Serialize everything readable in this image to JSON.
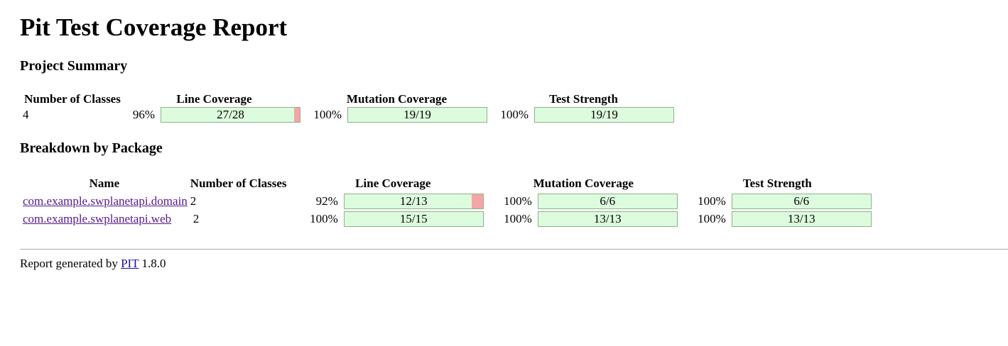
{
  "page_title": "Pit Test Coverage Report",
  "summary": {
    "heading": "Project Summary",
    "headers": {
      "classes": "Number of Classes",
      "line": "Line Coverage",
      "mutation": "Mutation Coverage",
      "strength": "Test Strength"
    },
    "row": {
      "classes": "4",
      "line_pct": "96%",
      "line_label": "27/28",
      "line_ratio": 0.96,
      "mutation_pct": "100%",
      "mutation_label": "19/19",
      "mutation_ratio": 1.0,
      "strength_pct": "100%",
      "strength_label": "19/19",
      "strength_ratio": 1.0
    }
  },
  "breakdown": {
    "heading": "Breakdown by Package",
    "headers": {
      "name": "Name",
      "classes": "Number of Classes",
      "line": "Line Coverage",
      "mutation": "Mutation Coverage",
      "strength": "Test Strength"
    },
    "rows": [
      {
        "name": "com.example.swplanetapi.domain",
        "classes": "2",
        "line_pct": "92%",
        "line_label": "12/13",
        "line_ratio": 0.92,
        "mutation_pct": "100%",
        "mutation_label": "6/6",
        "mutation_ratio": 1.0,
        "strength_pct": "100%",
        "strength_label": "6/6",
        "strength_ratio": 1.0
      },
      {
        "name": "com.example.swplanetapi.web",
        "classes": "2",
        "line_pct": "100%",
        "line_label": "15/15",
        "line_ratio": 1.0,
        "mutation_pct": "100%",
        "mutation_label": "13/13",
        "mutation_ratio": 1.0,
        "strength_pct": "100%",
        "strength_label": "13/13",
        "strength_ratio": 1.0
      }
    ]
  },
  "footer": {
    "prefix": "Report generated by",
    "link": "PIT",
    "version": "1.8.0"
  },
  "colors": {
    "covered": "#ddfbdd",
    "missed": "#f4a6a6",
    "bar_border": "#8fb08f"
  }
}
